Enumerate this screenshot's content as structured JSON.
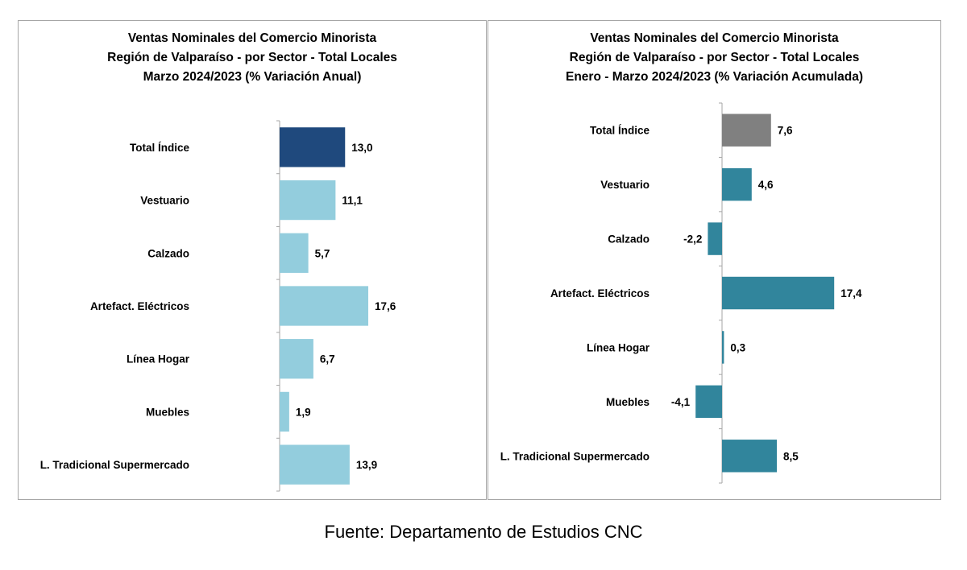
{
  "chart_data": [
    {
      "type": "bar",
      "orientation": "horizontal",
      "title": [
        "Ventas Nominales del Comercio Minorista",
        "Región de Valparaíso - por Sector - Total Locales",
        "Marzo 2024/2023 (% Variación Anual)"
      ],
      "categories": [
        "Total Índice",
        "Vestuario",
        "Calzado",
        "Artefact. Eléctricos",
        "Línea Hogar",
        "Muebles",
        "L. Tradicional Supermercado"
      ],
      "values": [
        13.0,
        11.1,
        5.7,
        17.6,
        6.7,
        1.9,
        13.9
      ],
      "value_labels": [
        "13,0",
        "11,1",
        "5,7",
        "17,6",
        "6,7",
        "1,9",
        "13,9"
      ],
      "bar_colors": [
        "#1f497d",
        "#93cddd",
        "#93cddd",
        "#93cddd",
        "#93cddd",
        "#93cddd",
        "#93cddd"
      ],
      "xlim": [
        0,
        20
      ]
    },
    {
      "type": "bar",
      "orientation": "horizontal",
      "title": [
        "Ventas Nominales del Comercio Minorista",
        "Región de Valparaíso - por Sector  - Total Locales",
        "Enero - Marzo 2024/2023 (% Variación Acumulada)"
      ],
      "categories": [
        "Total Índice",
        "Vestuario",
        "Calzado",
        "Artefact. Eléctricos",
        "Línea Hogar",
        "Muebles",
        "L. Tradicional Supermercado"
      ],
      "values": [
        7.6,
        4.6,
        -2.2,
        17.4,
        0.3,
        -4.1,
        8.5
      ],
      "value_labels": [
        "7,6",
        "4,6",
        "-2,2",
        "17,4",
        "0,3",
        "-4,1",
        "8,5"
      ],
      "bar_colors": [
        "#808080",
        "#31859c",
        "#31859c",
        "#31859c",
        "#31859c",
        "#31859c",
        "#31859c"
      ],
      "xlim": [
        -5,
        20
      ]
    }
  ],
  "source": "Fuente: Departamento de Estudios CNC"
}
